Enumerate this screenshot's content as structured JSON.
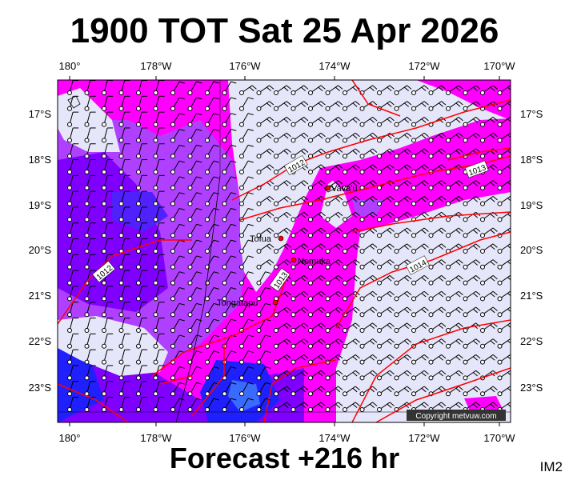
{
  "title": "1900 TOT Sat 25 Apr 2026",
  "subtitle": "Forecast +216 hr",
  "image_tag": "IM2",
  "copyright": "Copyright metvuw.com",
  "lon_labels": [
    "180°",
    "178°W",
    "176°W",
    "174°W",
    "172°W",
    "170°W"
  ],
  "lat_labels": [
    "17°S",
    "18°S",
    "19°S",
    "20°S",
    "21°S",
    "22°S",
    "23°S"
  ],
  "places": [
    {
      "name": "Vava'u"
    },
    {
      "name": "Tofua"
    },
    {
      "name": "Nomuka"
    },
    {
      "name": "Tongatapu"
    }
  ],
  "isobar_labels": [
    "1012",
    "1013",
    "1012",
    "1013",
    "1014"
  ],
  "colors": {
    "magenta": "#ff00ff",
    "purple": "#b040ff",
    "violet": "#8000ff",
    "blue": "#2020ff",
    "pale": "#e6e6fa",
    "isobar": "#ff0000",
    "town": "#ff0000"
  },
  "map_layers": [
    "wind-speed-shading",
    "wind-barbs",
    "isobars",
    "coastlines",
    "graticule"
  ]
}
